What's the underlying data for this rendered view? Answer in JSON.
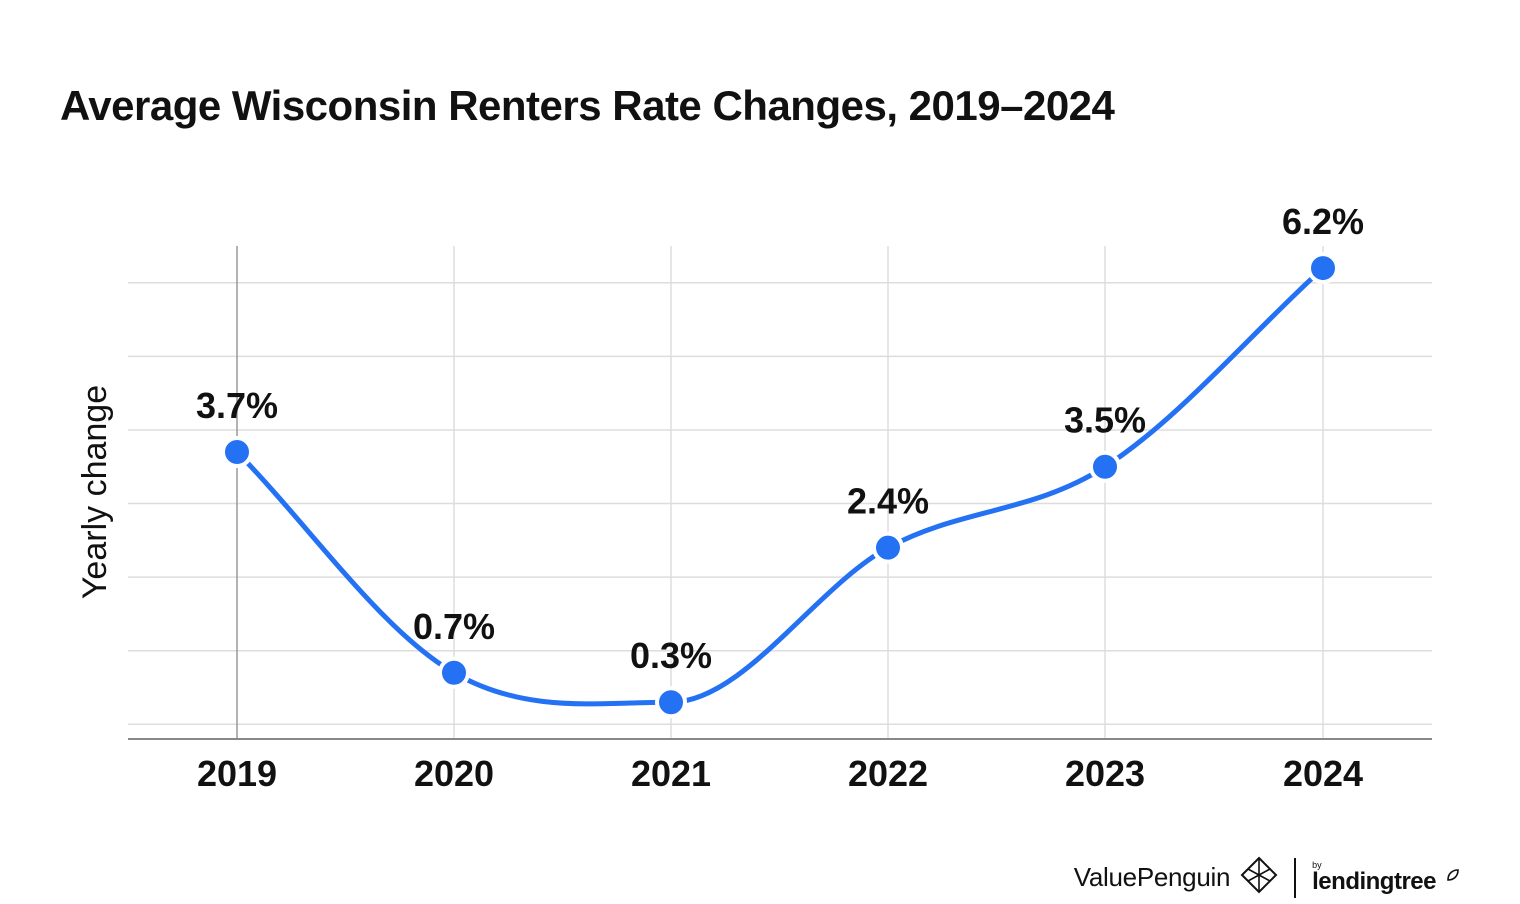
{
  "title": "Average Wisconsin Renters Rate Changes, 2019–2024",
  "chart_data": {
    "type": "line",
    "categories": [
      "2019",
      "2020",
      "2021",
      "2022",
      "2023",
      "2024"
    ],
    "series": [
      {
        "values": [
          3.7,
          0.7,
          0.3,
          2.4,
          3.5,
          6.2
        ],
        "data_labels": [
          "3.7%",
          "0.7%",
          "0.3%",
          "2.4%",
          "3.5%",
          "6.2%"
        ]
      }
    ],
    "title": "Average Wisconsin Renters Rate Changes, 2019–2024",
    "xlabel": "",
    "ylabel": "Yearly change",
    "ylim": [
      -0.2,
      6.5
    ],
    "y_gridlines": [
      0,
      1,
      2,
      3,
      4,
      5,
      6
    ],
    "grid": true,
    "legend": "none",
    "smooth": true,
    "colors": {
      "line": "#2472f3",
      "marker": "#2472f3",
      "marker_stroke": "#ffffff",
      "grid": "#dddddd",
      "axis": "#888888",
      "text": "#111111"
    }
  },
  "branding": {
    "valuepenguin": "ValuePenguin",
    "by": "by",
    "lendingtree": "lendingtree",
    "valuepenguin_icon": "penguin-diamond-icon",
    "lendingtree_icon": "leaf-icon"
  }
}
